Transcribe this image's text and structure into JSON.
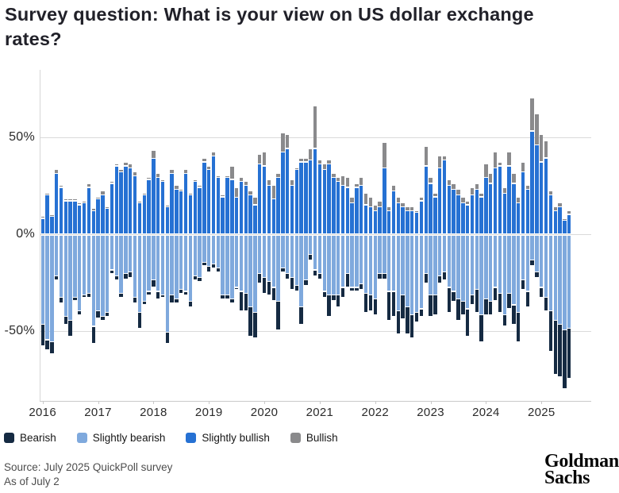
{
  "header": {
    "title": "Survey question: What is your view on US dollar exchange rates?"
  },
  "source": {
    "line1": "Source: July 2025 QuickPoll survey",
    "line2": "As of July 2"
  },
  "logo": {
    "line1": "Goldman",
    "line2": "Sachs"
  },
  "legend": {
    "items": [
      {
        "label": "Bearish",
        "color": "#152a42"
      },
      {
        "label": "Slightly bearish",
        "color": "#7fa9dd"
      },
      {
        "label": "Slightly bullish",
        "color": "#2671d3"
      },
      {
        "label": "Bullish",
        "color": "#8a8a8c"
      }
    ]
  },
  "chart_data": {
    "type": "bar",
    "subtype": "diverging-stacked-monthly",
    "unit": "%",
    "start_month": "2016-01",
    "end_month": "2025-07",
    "n_months": 115,
    "ylim": [
      -85,
      85
    ],
    "grid": "horizontal-only",
    "legend_position": "bottom-left",
    "y_ticks": [
      {
        "label": "50%",
        "value": 50
      },
      {
        "label": "0%",
        "value": 0
      },
      {
        "label": "-50%",
        "value": -50
      }
    ],
    "x_tick_years": [
      "2016",
      "2017",
      "2018",
      "2019",
      "2020",
      "2021",
      "2022",
      "2023",
      "2024",
      "2025"
    ],
    "series": [
      {
        "name": "Slightly bullish",
        "color": "#2671d3",
        "direction": "up",
        "stack_order": 1,
        "values": [
          8,
          20,
          9,
          31,
          24,
          17,
          17,
          17,
          15,
          16,
          24,
          12,
          18,
          20,
          13,
          26,
          35,
          32,
          35,
          34,
          30,
          16,
          20,
          28,
          39,
          29,
          27,
          14,
          31,
          23,
          22,
          31,
          20,
          27,
          24,
          37,
          33,
          40,
          29,
          19,
          29,
          28,
          19,
          27,
          25,
          20,
          15,
          36,
          35,
          25,
          18,
          29,
          42,
          44,
          25,
          33,
          37,
          37,
          38,
          44,
          36,
          33,
          36,
          29,
          27,
          25,
          24,
          16,
          24,
          25,
          15,
          14,
          12,
          14,
          34,
          12,
          22,
          16,
          14,
          12,
          12,
          11,
          17,
          35,
          26,
          19,
          34,
          38,
          25,
          23,
          20,
          16,
          15,
          20,
          23,
          19,
          29,
          26,
          34,
          35,
          21,
          35,
          26,
          16,
          32,
          23,
          53,
          46,
          37,
          39,
          20,
          12,
          14,
          7,
          10
        ]
      },
      {
        "name": "Bullish",
        "color": "#8a8a8c",
        "direction": "up",
        "stack_order": 2,
        "values": [
          1,
          1,
          1,
          2,
          1,
          1,
          1,
          1,
          1,
          1,
          2,
          1,
          1,
          2,
          1,
          1,
          1,
          1,
          2,
          2,
          2,
          1,
          1,
          1,
          4,
          2,
          1,
          1,
          2,
          2,
          1,
          2,
          1,
          1,
          1,
          2,
          2,
          2,
          1,
          1,
          1,
          7,
          5,
          2,
          2,
          2,
          4,
          5,
          7,
          3,
          7,
          2,
          10,
          7,
          3,
          1,
          2,
          2,
          6,
          22,
          2,
          3,
          2,
          2,
          2,
          5,
          5,
          3,
          2,
          4,
          6,
          5,
          3,
          3,
          13,
          2,
          3,
          3,
          2,
          2,
          2,
          1,
          2,
          10,
          3,
          2,
          6,
          2,
          3,
          3,
          3,
          3,
          2,
          4,
          3,
          2,
          7,
          5,
          8,
          2,
          3,
          7,
          5,
          3,
          5,
          2,
          17,
          16,
          14,
          9,
          2,
          2,
          2,
          1,
          2
        ]
      },
      {
        "name": "Slightly bearish",
        "color": "#7fa9dd",
        "direction": "down",
        "stack_order": 1,
        "values": [
          46,
          54,
          55,
          21,
          32,
          42,
          44,
          32,
          39,
          31,
          30,
          47,
          39,
          42,
          40,
          18,
          21,
          30,
          20,
          19,
          32,
          40,
          34,
          29,
          23,
          29,
          31,
          50,
          31,
          33,
          28,
          29,
          34,
          21,
          22,
          14,
          16,
          15,
          17,
          31,
          31,
          33,
          27,
          29,
          30,
          37,
          40,
          20,
          22,
          24,
          27,
          34,
          17,
          20,
          22,
          26,
          37,
          23,
          10,
          18,
          20,
          29,
          31,
          31,
          31,
          27,
          20,
          27,
          27,
          25,
          30,
          31,
          33,
          20,
          20,
          29,
          29,
          39,
          31,
          37,
          41,
          40,
          38,
          20,
          31,
          31,
          21,
          19,
          27,
          29,
          33,
          34,
          38,
          31,
          28,
          41,
          33,
          34,
          27,
          30,
          41,
          30,
          36,
          40,
          23,
          29,
          13,
          19,
          27,
          32,
          39,
          44,
          46,
          49,
          48
        ]
      },
      {
        "name": "Bearish",
        "color": "#152a42",
        "direction": "down",
        "stack_order": 2,
        "values": [
          11,
          5,
          6,
          2,
          3,
          4,
          8,
          2,
          2,
          1,
          2,
          9,
          4,
          2,
          2,
          2,
          2,
          2,
          3,
          3,
          3,
          8,
          2,
          2,
          4,
          4,
          1,
          6,
          4,
          2,
          2,
          2,
          3,
          2,
          2,
          2,
          3,
          2,
          2,
          2,
          2,
          2,
          1,
          10,
          9,
          15,
          13,
          5,
          8,
          7,
          7,
          15,
          2,
          3,
          6,
          3,
          9,
          3,
          3,
          3,
          3,
          3,
          11,
          3,
          6,
          5,
          7,
          2,
          2,
          3,
          10,
          8,
          8,
          3,
          3,
          15,
          13,
          12,
          12,
          14,
          12,
          5,
          4,
          5,
          11,
          10,
          4,
          4,
          13,
          5,
          11,
          7,
          14,
          5,
          12,
          14,
          8,
          7,
          7,
          10,
          6,
          8,
          10,
          15,
          5,
          8,
          3,
          3,
          5,
          7,
          21,
          28,
          27,
          30,
          26
        ]
      }
    ]
  }
}
